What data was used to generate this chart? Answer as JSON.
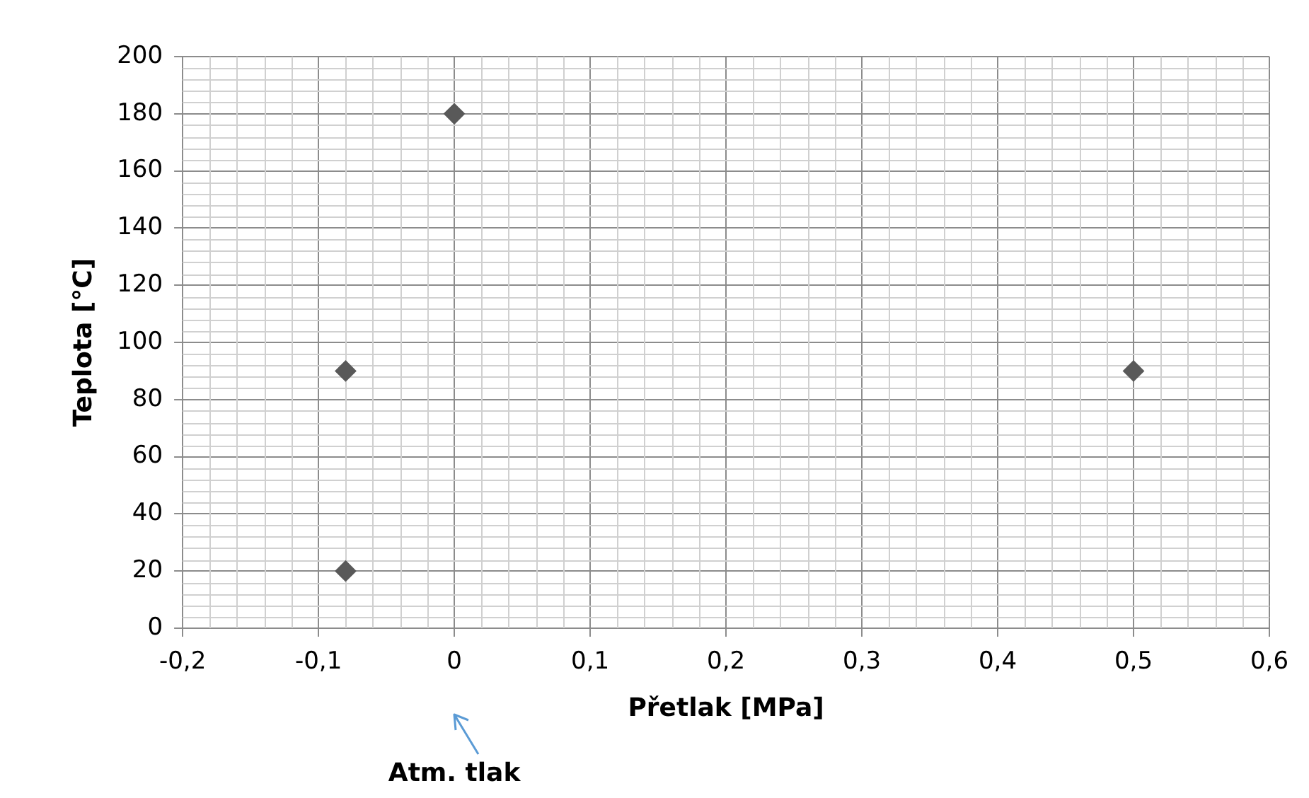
{
  "chart_data": {
    "type": "scatter",
    "xlabel": "Přetlak [MPa]",
    "ylabel": "Teplota [°C]",
    "x": [
      -0.08,
      -0.08,
      0,
      0.5
    ],
    "values": [
      20,
      90,
      180,
      90
    ],
    "color": "#595959",
    "marker": "diamond",
    "xlim": [
      -0.2,
      0.6
    ],
    "xticks": [
      {
        "value": -0.2,
        "label": "-0,2"
      },
      {
        "value": -0.1,
        "label": "-0,1"
      },
      0,
      {
        "value": 0.1,
        "label": "0,1"
      },
      {
        "value": 0.2,
        "label": "0,2"
      },
      {
        "value": 0.3,
        "label": "0,3"
      },
      {
        "value": 0.4,
        "label": "0,4"
      },
      {
        "value": 0.5,
        "label": "0,5"
      },
      {
        "value": 0.6,
        "label": "0,6"
      }
    ],
    "ylim": [
      0,
      200
    ],
    "yticks": [
      0,
      20,
      40,
      60,
      80,
      100,
      120,
      140,
      160,
      180,
      200
    ],
    "grid": true,
    "annotations": [
      "Atm. tlak"
    ]
  }
}
